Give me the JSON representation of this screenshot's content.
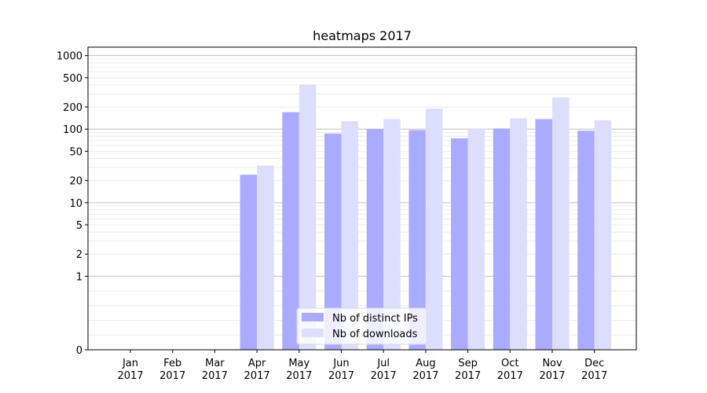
{
  "chart_data": {
    "type": "bar",
    "title": "heatmaps 2017",
    "xlabel": "",
    "ylabel": "",
    "y_scale": "symlog",
    "ylim": [
      0,
      1300
    ],
    "grid": "horizontal",
    "legend_position": "lower-center",
    "categories": [
      "Jan\n2017",
      "Feb\n2017",
      "Mar\n2017",
      "Apr\n2017",
      "May\n2017",
      "Jun\n2017",
      "Jul\n2017",
      "Aug\n2017",
      "Sep\n2017",
      "Oct\n2017",
      "Nov\n2017",
      "Dec\n2017"
    ],
    "series": [
      {
        "name": "Nb of distinct IPs",
        "color": "#aaaaff",
        "values": [
          0,
          0,
          0,
          24,
          170,
          87,
          100,
          97,
          75,
          102,
          137,
          95
        ]
      },
      {
        "name": "Nb of downloads",
        "color": "#ddddff",
        "values": [
          0,
          0,
          0,
          32,
          400,
          128,
          137,
          190,
          102,
          140,
          270,
          132
        ]
      }
    ],
    "y_ticks": [
      0,
      1,
      2,
      5,
      10,
      20,
      50,
      100,
      200,
      500,
      1000
    ]
  }
}
